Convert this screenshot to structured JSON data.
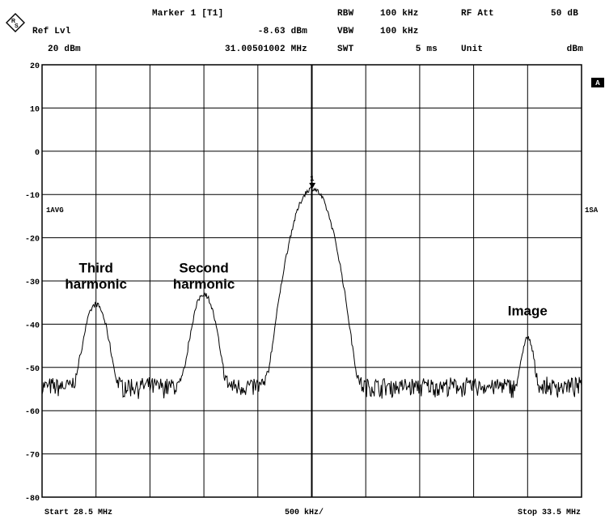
{
  "header": {
    "ref_lvl_label": "Ref Lvl",
    "ref_lvl_value": "20 dBm",
    "marker_label": "Marker 1 [T1]",
    "marker_level": "-8.63 dBm",
    "marker_freq": "31.00501002 MHz",
    "rbw_label": "RBW",
    "rbw_value": "100 kHz",
    "vbw_label": "VBW",
    "vbw_value": "100 kHz",
    "swt_label": "SWT",
    "swt_value": "5 ms",
    "rf_att_label": "RF Att",
    "rf_att_value": "50 dB",
    "unit_label": "Unit",
    "unit_value": "dBm"
  },
  "footer": {
    "start_label": "Start 28.5 MHz",
    "span_label": "500 kHz/",
    "stop_label": "Stop 33.5 MHz"
  },
  "side_labels": {
    "trace_mode_left": "1AVG",
    "trace_mode_right": "1SA",
    "trace_tag": "A",
    "marker_tag": "1"
  },
  "colors": {
    "background": "#ffffff",
    "grid": "#000000",
    "trace": "#000000"
  },
  "icons": {
    "logo": "rohde-schwarz-logo-icon"
  },
  "chart_data": {
    "type": "line",
    "title": "",
    "xlabel": "",
    "ylabel": "",
    "x_unit": "MHz",
    "y_unit": "dBm",
    "xlim": [
      28.5,
      33.5
    ],
    "ylim": [
      -80,
      20
    ],
    "x_div": 0.5,
    "y_ticks": [
      20,
      10,
      0,
      -10,
      -20,
      -30,
      -40,
      -50,
      -60,
      -70,
      -80
    ],
    "grid": true,
    "noise_floor": -54.5,
    "series": [
      {
        "peaks": [
          {
            "x": 29.0,
            "y": -35.5,
            "width": 0.06
          },
          {
            "x": 30.0,
            "y": -33.0,
            "width": 0.06
          },
          {
            "x": 31.005,
            "y": -8.6,
            "width": 0.09
          },
          {
            "x": 33.0,
            "y": -43.5,
            "width": 0.035
          }
        ]
      }
    ],
    "marker": {
      "x": 31.005,
      "y": -8.63
    },
    "annotations": [
      {
        "lines": [
          "Third",
          "harmonic"
        ],
        "x": 29.0,
        "y": -28
      },
      {
        "lines": [
          "Second",
          "harmonic"
        ],
        "x": 30.0,
        "y": -28
      },
      {
        "lines": [
          "Image"
        ],
        "x": 33.0,
        "y": -38
      }
    ]
  }
}
